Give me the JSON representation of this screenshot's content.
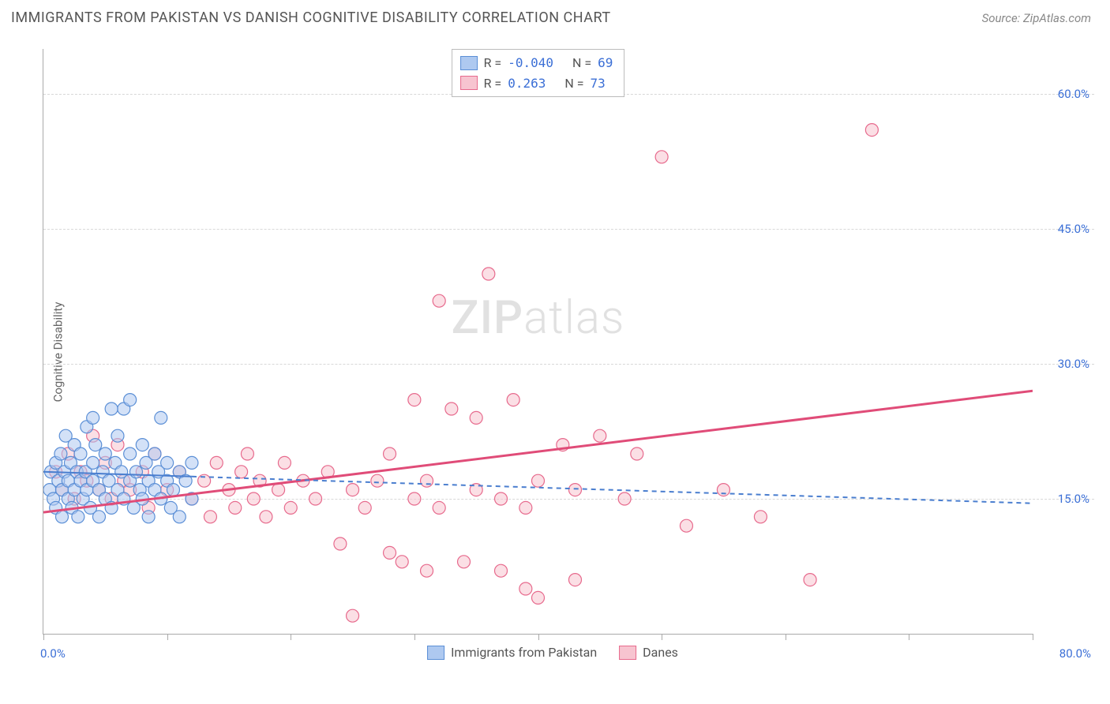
{
  "header": {
    "title": "IMMIGRANTS FROM PAKISTAN VS DANISH COGNITIVE DISABILITY CORRELATION CHART",
    "source_prefix": "Source: ",
    "source_name": "ZipAtlas.com"
  },
  "chart": {
    "type": "scatter",
    "ylabel": "Cognitive Disability",
    "watermark_pre": "ZIP",
    "watermark_post": "atlas",
    "background_color": "#ffffff",
    "grid_color": "#d8d8d8",
    "axis_color": "#aaaaaa",
    "label_color": "#3b6fd6",
    "xlim": [
      0,
      80
    ],
    "ylim": [
      0,
      65
    ],
    "x_tick_positions": [
      0,
      10,
      20,
      30,
      40,
      50,
      60,
      70,
      80
    ],
    "y_gridlines": [
      15,
      30,
      45,
      60
    ],
    "y_tick_labels": [
      "15.0%",
      "30.0%",
      "45.0%",
      "60.0%"
    ],
    "x_label_min": "0.0%",
    "x_label_max": "80.0%",
    "legend_top": {
      "rows": [
        {
          "swatch_fill": "#aec9f0",
          "swatch_border": "#5b8fd6",
          "r_label": "R =",
          "r_value": "-0.040",
          "n_label": "N =",
          "n_value": "69"
        },
        {
          "swatch_fill": "#f7c4d0",
          "swatch_border": "#e76a8d",
          "r_label": "R =",
          "r_value": " 0.263",
          "n_label": "N =",
          "n_value": "73"
        }
      ]
    },
    "legend_bottom": {
      "items": [
        {
          "swatch_fill": "#aec9f0",
          "swatch_border": "#5b8fd6",
          "label": "Immigrants from Pakistan"
        },
        {
          "swatch_fill": "#f7c4d0",
          "swatch_border": "#e76a8d",
          "label": "Danes"
        }
      ]
    },
    "series": {
      "blue": {
        "fill": "#aec9f0",
        "stroke": "#5b8fd6",
        "marker_radius": 8,
        "fill_opacity": 0.55,
        "trend": {
          "x1": 0,
          "y1": 18.0,
          "x2": 80,
          "y2": 14.5,
          "stroke": "#4a7ecf",
          "width": 2,
          "dash": "6 5",
          "solid_until_x": 12
        },
        "points": [
          [
            0.5,
            16
          ],
          [
            0.6,
            18
          ],
          [
            0.8,
            15
          ],
          [
            1.0,
            19
          ],
          [
            1.0,
            14
          ],
          [
            1.2,
            17
          ],
          [
            1.4,
            20
          ],
          [
            1.5,
            16
          ],
          [
            1.5,
            13
          ],
          [
            1.7,
            18
          ],
          [
            1.8,
            22
          ],
          [
            2.0,
            15
          ],
          [
            2.0,
            17
          ],
          [
            2.2,
            19
          ],
          [
            2.3,
            14
          ],
          [
            2.5,
            16
          ],
          [
            2.5,
            21
          ],
          [
            2.7,
            18
          ],
          [
            2.8,
            13
          ],
          [
            3.0,
            17
          ],
          [
            3.0,
            20
          ],
          [
            3.2,
            15
          ],
          [
            3.4,
            18
          ],
          [
            3.5,
            23
          ],
          [
            3.5,
            16
          ],
          [
            3.8,
            14
          ],
          [
            4.0,
            19
          ],
          [
            4.0,
            17
          ],
          [
            4.2,
            21
          ],
          [
            4.5,
            16
          ],
          [
            4.5,
            13
          ],
          [
            4.8,
            18
          ],
          [
            5.0,
            15
          ],
          [
            5.0,
            20
          ],
          [
            5.3,
            17
          ],
          [
            5.5,
            14
          ],
          [
            5.8,
            19
          ],
          [
            6.0,
            22
          ],
          [
            6.0,
            16
          ],
          [
            6.3,
            18
          ],
          [
            6.5,
            15
          ],
          [
            6.5,
            25
          ],
          [
            7.0,
            17
          ],
          [
            7.0,
            20
          ],
          [
            7.3,
            14
          ],
          [
            7.5,
            18
          ],
          [
            7.8,
            16
          ],
          [
            8.0,
            21
          ],
          [
            8.0,
            15
          ],
          [
            8.3,
            19
          ],
          [
            8.5,
            17
          ],
          [
            8.5,
            13
          ],
          [
            9.0,
            20
          ],
          [
            9.0,
            16
          ],
          [
            9.3,
            18
          ],
          [
            9.5,
            15
          ],
          [
            9.5,
            24
          ],
          [
            10.0,
            17
          ],
          [
            10.0,
            19
          ],
          [
            10.3,
            14
          ],
          [
            10.5,
            16
          ],
          [
            11.0,
            18
          ],
          [
            11.0,
            13
          ],
          [
            11.5,
            17
          ],
          [
            12.0,
            19
          ],
          [
            12.0,
            15
          ],
          [
            7.0,
            26
          ],
          [
            5.5,
            25
          ],
          [
            4.0,
            24
          ]
        ]
      },
      "pink": {
        "fill": "#f7c4d0",
        "stroke": "#e76a8d",
        "marker_radius": 8,
        "fill_opacity": 0.55,
        "trend": {
          "x1": 0,
          "y1": 13.5,
          "x2": 80,
          "y2": 27.0,
          "stroke": "#e04c78",
          "width": 3,
          "dash": null
        },
        "points": [
          [
            1.0,
            18
          ],
          [
            1.5,
            16
          ],
          [
            2.0,
            20
          ],
          [
            2.5,
            15
          ],
          [
            3.0,
            18
          ],
          [
            3.5,
            17
          ],
          [
            4.0,
            22
          ],
          [
            4.5,
            16
          ],
          [
            5.0,
            19
          ],
          [
            5.5,
            15
          ],
          [
            6.0,
            21
          ],
          [
            6.5,
            17
          ],
          [
            7.0,
            16
          ],
          [
            8.0,
            18
          ],
          [
            8.5,
            14
          ],
          [
            9.0,
            20
          ],
          [
            10.0,
            16
          ],
          [
            11.0,
            18
          ],
          [
            12.0,
            15
          ],
          [
            13.0,
            17
          ],
          [
            13.5,
            13
          ],
          [
            14.0,
            19
          ],
          [
            15.0,
            16
          ],
          [
            15.5,
            14
          ],
          [
            16.0,
            18
          ],
          [
            16.5,
            20
          ],
          [
            17.0,
            15
          ],
          [
            17.5,
            17
          ],
          [
            18.0,
            13
          ],
          [
            19.0,
            16
          ],
          [
            19.5,
            19
          ],
          [
            20.0,
            14
          ],
          [
            21.0,
            17
          ],
          [
            22.0,
            15
          ],
          [
            23.0,
            18
          ],
          [
            24.0,
            10
          ],
          [
            25.0,
            16
          ],
          [
            25.0,
            2
          ],
          [
            26.0,
            14
          ],
          [
            27.0,
            17
          ],
          [
            28.0,
            9
          ],
          [
            28.0,
            20
          ],
          [
            29.0,
            8
          ],
          [
            30.0,
            15
          ],
          [
            30.0,
            26
          ],
          [
            31.0,
            7
          ],
          [
            31.0,
            17
          ],
          [
            32.0,
            14
          ],
          [
            32.0,
            37
          ],
          [
            33.0,
            25
          ],
          [
            34.0,
            8
          ],
          [
            35.0,
            16
          ],
          [
            35.0,
            24
          ],
          [
            36.0,
            40
          ],
          [
            37.0,
            15
          ],
          [
            37.0,
            7
          ],
          [
            38.0,
            26
          ],
          [
            39.0,
            14
          ],
          [
            39.0,
            5
          ],
          [
            40.0,
            17
          ],
          [
            40.0,
            4
          ],
          [
            42.0,
            21
          ],
          [
            43.0,
            16
          ],
          [
            43.0,
            6
          ],
          [
            45.0,
            22
          ],
          [
            47.0,
            15
          ],
          [
            48.0,
            20
          ],
          [
            50.0,
            53
          ],
          [
            52.0,
            12
          ],
          [
            55.0,
            16
          ],
          [
            58.0,
            13
          ],
          [
            62.0,
            6
          ],
          [
            67.0,
            56
          ]
        ]
      }
    }
  }
}
